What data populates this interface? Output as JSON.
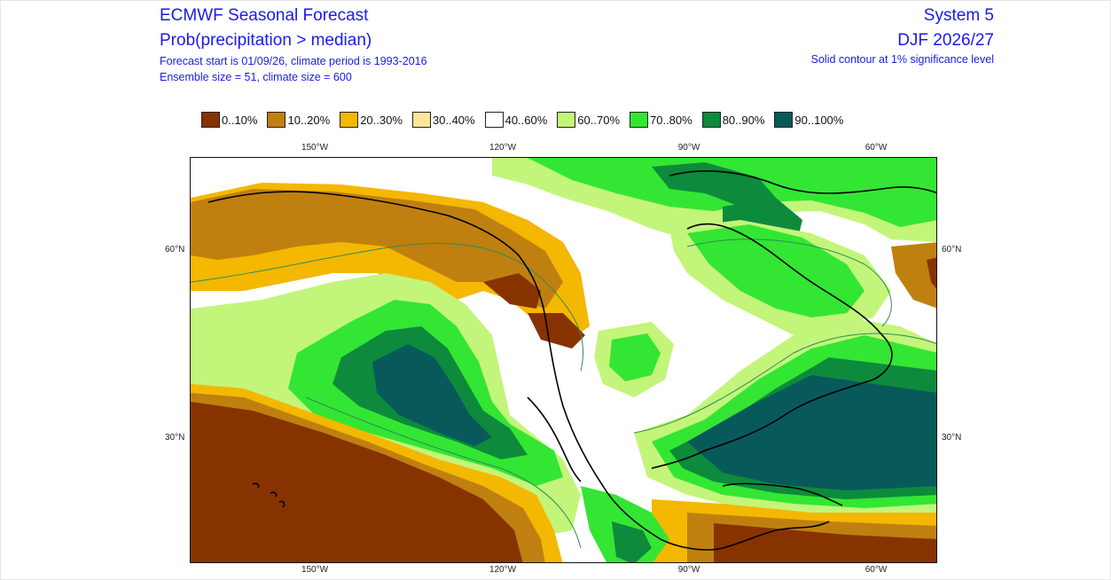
{
  "header": {
    "title": "ECMWF Seasonal Forecast",
    "subtitle": "Prob(precipitation > median)",
    "info_line1": "Forecast start is 01/09/26, climate period is 1993-2016",
    "info_line2": "Ensemble size = 51, climate size = 600",
    "system": "System 5",
    "season": "DJF 2026/27",
    "significance_note": "Solid contour at 1% significance level"
  },
  "legend": [
    {
      "label": "0..10%",
      "color": "#873300"
    },
    {
      "label": "10..20%",
      "color": "#c08010"
    },
    {
      "label": "20..30%",
      "color": "#f4b800"
    },
    {
      "label": "30..40%",
      "color": "#fde59a"
    },
    {
      "label": "40..60%",
      "color": "#ffffff"
    },
    {
      "label": "60..70%",
      "color": "#c3f57a"
    },
    {
      "label": "70..80%",
      "color": "#33e633"
    },
    {
      "label": "80..90%",
      "color": "#0e8a3c"
    },
    {
      "label": "90..100%",
      "color": "#085a5a"
    }
  ],
  "axes": {
    "lon_labels": [
      "150°W",
      "120°W",
      "90°W",
      "60°W"
    ],
    "lat_labels": [
      "60°N",
      "30°N"
    ]
  }
}
